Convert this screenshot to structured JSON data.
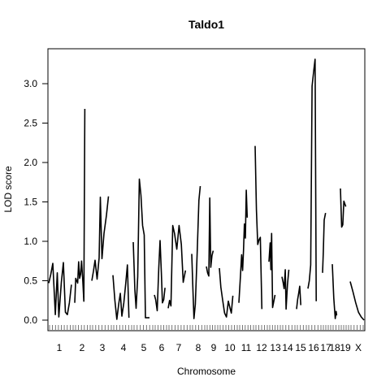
{
  "chart_data": {
    "type": "line",
    "title": "Taldo1",
    "xlabel": "Chromosome",
    "ylabel": "LOD score",
    "ylim": [
      -0.08,
      3.45
    ],
    "y_ticks": [
      "0.0",
      "0.5",
      "1.0",
      "1.5",
      "2.0",
      "2.5",
      "3.0"
    ],
    "y_tick_values": [
      0,
      0.5,
      1.0,
      1.5,
      2.0,
      2.5,
      3.0
    ],
    "grid": false,
    "legend": "none",
    "line_color": "#000000",
    "chromosomes": [
      {
        "label": "1",
        "points": [
          [
            0.0,
            0.47
          ],
          [
            0.08,
            0.58
          ],
          [
            0.16,
            0.72
          ],
          [
            0.26,
            0.07
          ],
          [
            0.34,
            0.6
          ],
          [
            0.4,
            0.04
          ],
          [
            0.5,
            0.48
          ],
          [
            0.58,
            0.73
          ],
          [
            0.66,
            0.1
          ],
          [
            0.74,
            0.07
          ],
          [
            0.82,
            0.22
          ],
          [
            0.9,
            0.45
          ]
        ]
      },
      {
        "label": "2",
        "points": [
          [
            0.0,
            0.22
          ],
          [
            0.06,
            0.53
          ],
          [
            0.12,
            0.5
          ],
          [
            0.18,
            0.47
          ],
          [
            0.24,
            0.74
          ],
          [
            0.3,
            0.53
          ],
          [
            0.36,
            0.58
          ],
          [
            0.42,
            0.75
          ],
          [
            0.5,
            0.48
          ],
          [
            0.56,
            0.24
          ],
          [
            0.62,
            2.68
          ]
        ]
      },
      {
        "label": "3",
        "points": [
          [
            0.0,
            0.5
          ],
          [
            0.08,
            0.62
          ],
          [
            0.16,
            0.76
          ],
          [
            0.26,
            0.52
          ],
          [
            0.36,
            0.79
          ],
          [
            0.42,
            1.56
          ],
          [
            0.5,
            0.78
          ],
          [
            0.6,
            1.1
          ],
          [
            0.72,
            1.33
          ],
          [
            0.82,
            1.57
          ]
        ]
      },
      {
        "label": "4",
        "points": [
          [
            0.0,
            0.57
          ],
          [
            0.1,
            0.25
          ],
          [
            0.2,
            0.01
          ],
          [
            0.3,
            0.21
          ],
          [
            0.38,
            0.34
          ],
          [
            0.46,
            0.05
          ],
          [
            0.56,
            0.22
          ],
          [
            0.66,
            0.47
          ],
          [
            0.74,
            0.7
          ],
          [
            0.82,
            0.03
          ]
        ]
      },
      {
        "label": "5",
        "points": [
          [
            0.0,
            0.99
          ],
          [
            0.08,
            0.38
          ],
          [
            0.14,
            0.15
          ],
          [
            0.22,
            0.55
          ],
          [
            0.3,
            1.79
          ],
          [
            0.38,
            1.58
          ],
          [
            0.46,
            1.2
          ],
          [
            0.54,
            1.08
          ],
          [
            0.6,
            0.03
          ],
          [
            0.7,
            0.03
          ],
          [
            0.8,
            0.03
          ]
        ]
      },
      {
        "label": "6",
        "points": [
          [
            0.0,
            0.32
          ],
          [
            0.1,
            0.26
          ],
          [
            0.22,
            0.12
          ],
          [
            0.34,
            0.66
          ],
          [
            0.44,
            1.01
          ],
          [
            0.54,
            0.6
          ],
          [
            0.62,
            0.22
          ],
          [
            0.72,
            0.26
          ],
          [
            0.82,
            0.41
          ]
        ]
      },
      {
        "label": "7",
        "points": [
          [
            0.0,
            0.15
          ],
          [
            0.06,
            0.25
          ],
          [
            0.12,
            0.18
          ],
          [
            0.2,
            1.2
          ],
          [
            0.28,
            1.1
          ],
          [
            0.38,
            0.9
          ],
          [
            0.48,
            1.2
          ],
          [
            0.58,
            0.96
          ],
          [
            0.66,
            0.48
          ],
          [
            0.76,
            0.63
          ]
        ]
      },
      {
        "label": "8",
        "points": [
          [
            0.0,
            0.84
          ],
          [
            0.08,
            0.4
          ],
          [
            0.16,
            0.02
          ],
          [
            0.26,
            0.2
          ],
          [
            0.4,
            0.89
          ],
          [
            0.52,
            1.52
          ],
          [
            0.62,
            1.7
          ]
        ]
      },
      {
        "label": "9",
        "points": [
          [
            0.0,
            0.68
          ],
          [
            0.1,
            0.6
          ],
          [
            0.2,
            0.56
          ],
          [
            0.28,
            1.55
          ],
          [
            0.36,
            0.67
          ],
          [
            0.46,
            0.82
          ],
          [
            0.56,
            0.88
          ]
        ]
      },
      {
        "label": "10",
        "points": [
          [
            0.0,
            0.66
          ],
          [
            0.08,
            0.42
          ],
          [
            0.18,
            0.25
          ],
          [
            0.28,
            0.09
          ],
          [
            0.38,
            0.04
          ],
          [
            0.48,
            0.24
          ],
          [
            0.56,
            0.16
          ],
          [
            0.64,
            0.09
          ],
          [
            0.72,
            0.31
          ]
        ]
      },
      {
        "label": "11",
        "points": [
          [
            0.0,
            0.22
          ],
          [
            0.1,
            0.55
          ],
          [
            0.18,
            0.83
          ],
          [
            0.24,
            0.63
          ],
          [
            0.3,
            0.88
          ],
          [
            0.36,
            1.22
          ],
          [
            0.42,
            1.04
          ],
          [
            0.48,
            1.65
          ],
          [
            0.54,
            1.3
          ]
        ]
      },
      {
        "label": "12",
        "points": [
          [
            0.0,
            2.21
          ],
          [
            0.1,
            1.4
          ],
          [
            0.2,
            0.96
          ],
          [
            0.3,
            1.02
          ],
          [
            0.4,
            1.05
          ],
          [
            0.52,
            0.14
          ]
        ]
      },
      {
        "label": "13",
        "points": [
          [
            0.0,
            0.74
          ],
          [
            0.1,
            0.98
          ],
          [
            0.16,
            0.64
          ],
          [
            0.22,
            1.1
          ],
          [
            0.3,
            0.16
          ],
          [
            0.4,
            0.24
          ],
          [
            0.5,
            0.32
          ]
        ]
      },
      {
        "label": "14",
        "points": [
          [
            0.0,
            0.55
          ],
          [
            0.08,
            0.48
          ],
          [
            0.16,
            0.4
          ],
          [
            0.24,
            0.64
          ],
          [
            0.3,
            0.14
          ],
          [
            0.4,
            0.45
          ],
          [
            0.5,
            0.64
          ]
        ]
      },
      {
        "label": "15",
        "points": [
          [
            0.0,
            0.14
          ],
          [
            0.1,
            0.26
          ],
          [
            0.2,
            0.34
          ],
          [
            0.3,
            0.43
          ],
          [
            0.4,
            0.19
          ]
        ]
      },
      {
        "label": "16",
        "points": [
          [
            0.0,
            0.4
          ],
          [
            0.1,
            0.5
          ],
          [
            0.2,
            0.7
          ],
          [
            0.3,
            2.97
          ],
          [
            0.42,
            3.16
          ],
          [
            0.52,
            3.31
          ],
          [
            0.6,
            0.24
          ]
        ]
      },
      {
        "label": "17",
        "points": [
          [
            0.0,
            0.6
          ],
          [
            0.08,
            0.86
          ],
          [
            0.18,
            1.27
          ],
          [
            0.34,
            1.36
          ]
        ]
      },
      {
        "label": "18",
        "points": [
          [
            0.0,
            0.71
          ],
          [
            0.2,
            0.28
          ],
          [
            0.4,
            0.02
          ],
          [
            0.52,
            0.11
          ],
          [
            0.6,
            0.06
          ]
        ]
      },
      {
        "label": "19",
        "points": [
          [
            0.0,
            1.67
          ],
          [
            0.14,
            1.18
          ],
          [
            0.26,
            1.21
          ],
          [
            0.38,
            1.51
          ],
          [
            0.6,
            1.44
          ]
        ]
      },
      {
        "label": "X",
        "points": [
          [
            0.0,
            0.49
          ],
          [
            0.2,
            0.36
          ],
          [
            0.4,
            0.22
          ],
          [
            0.6,
            0.1
          ],
          [
            0.8,
            0.04
          ],
          [
            1.0,
            0.0
          ]
        ]
      }
    ]
  }
}
